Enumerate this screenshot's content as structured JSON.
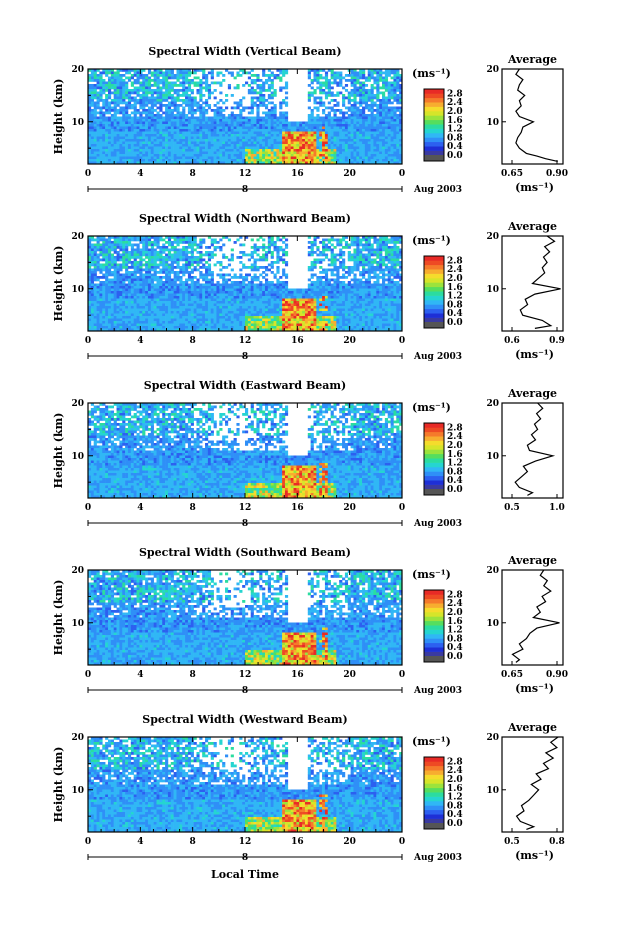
{
  "figure": {
    "x_axis_label": "Local Time"
  },
  "colorbar": {
    "unit_label": "(ms⁻¹)",
    "ticks": [
      "0.0",
      "0.4",
      "0.8",
      "1.2",
      "1.6",
      "2.0",
      "2.4",
      "2.8"
    ],
    "colors": [
      "#3a3aa0",
      "#1e2fd6",
      "#2c60f0",
      "#2f8ff7",
      "#30b7f5",
      "#25d5d0",
      "#2bdca0",
      "#55de5e",
      "#9be33c",
      "#d6e52a",
      "#f5dc2c",
      "#f7ad2f",
      "#f57a2b",
      "#ee4a24",
      "#e82a26"
    ]
  },
  "chart_data": [
    {
      "type": "heatmap",
      "title": "Spectral Width (Vertical Beam)",
      "ylabel": "Height (km)",
      "x_ticks": [
        "0",
        "4",
        "8",
        "12",
        "16",
        "20",
        "0"
      ],
      "y_ticks": [
        "20",
        "10"
      ],
      "xlim": [
        0,
        24
      ],
      "ylim": [
        2,
        20
      ],
      "date_marker": "8",
      "date_label": "Aug 2003",
      "profile": {
        "title": "Average",
        "xlabel": "(ms⁻¹)",
        "x_ticks": [
          "0.65",
          "0.90"
        ],
        "y_ticks": [
          "20",
          "10"
        ],
        "xlim": [
          0.6,
          0.95
        ],
        "heights": [
          2.5,
          3.0,
          3.5,
          4.0,
          5.0,
          6.0,
          7.0,
          8.0,
          9.0,
          10.0,
          11.0,
          12.0,
          13.0,
          14.0,
          15.0,
          16.0,
          17.0,
          18.0,
          19.0,
          20.0
        ],
        "values": [
          0.92,
          0.85,
          0.8,
          0.74,
          0.7,
          0.68,
          0.69,
          0.71,
          0.72,
          0.78,
          0.7,
          0.68,
          0.71,
          0.7,
          0.73,
          0.69,
          0.7,
          0.72,
          0.68,
          0.7
        ]
      }
    },
    {
      "type": "heatmap",
      "title": "Spectral Width (Northward Beam)",
      "ylabel": "Height (km)",
      "x_ticks": [
        "0",
        "4",
        "8",
        "12",
        "16",
        "20",
        "0"
      ],
      "y_ticks": [
        "20",
        "10"
      ],
      "xlim": [
        0,
        24
      ],
      "ylim": [
        2,
        20
      ],
      "date_marker": "8",
      "date_label": "Aug 2003",
      "profile": {
        "title": "Average",
        "xlabel": "(ms⁻¹)",
        "x_ticks": [
          "0.6",
          "0.9"
        ],
        "y_ticks": [
          "20",
          "10"
        ],
        "xlim": [
          0.45,
          0.95
        ],
        "heights": [
          2.5,
          3.0,
          4.0,
          5.0,
          6.0,
          7.0,
          8.0,
          9.0,
          10.0,
          11.0,
          12.0,
          13.0,
          14.0,
          15.0,
          16.0,
          17.0,
          18.0,
          19.0,
          20.0
        ],
        "values": [
          0.72,
          0.85,
          0.78,
          0.62,
          0.6,
          0.66,
          0.64,
          0.72,
          0.93,
          0.7,
          0.75,
          0.8,
          0.78,
          0.82,
          0.79,
          0.84,
          0.8,
          0.88,
          0.82
        ]
      }
    },
    {
      "type": "heatmap",
      "title": "Spectral Width (Eastward Beam)",
      "ylabel": "Height (km)",
      "x_ticks": [
        "0",
        "4",
        "8",
        "12",
        "16",
        "20",
        "0"
      ],
      "y_ticks": [
        "20",
        "10"
      ],
      "xlim": [
        0,
        24
      ],
      "ylim": [
        2,
        20
      ],
      "date_marker": "8",
      "date_label": "Aug 2003",
      "profile": {
        "title": "Average",
        "xlabel": "",
        "x_ticks": [
          "0.5",
          "1.0"
        ],
        "y_ticks": [
          "20",
          "10"
        ],
        "xlim": [
          0.45,
          1.05
        ],
        "heights": [
          2.5,
          3.0,
          4.0,
          5.0,
          6.0,
          7.0,
          8.0,
          9.0,
          10.0,
          11.0,
          12.0,
          13.0,
          14.0,
          15.0,
          16.0,
          17.0,
          18.0,
          19.0,
          20.0
        ],
        "values": [
          0.7,
          0.75,
          0.62,
          0.58,
          0.64,
          0.7,
          0.66,
          0.78,
          0.95,
          0.72,
          0.7,
          0.78,
          0.74,
          0.8,
          0.77,
          0.83,
          0.79,
          0.85,
          0.8
        ]
      }
    },
    {
      "type": "heatmap",
      "title": "Spectral Width (Southward Beam)",
      "ylabel": "Height (km)",
      "x_ticks": [
        "0",
        "4",
        "8",
        "12",
        "16",
        "20",
        "0"
      ],
      "y_ticks": [
        "20",
        "10"
      ],
      "xlim": [
        0,
        24
      ],
      "ylim": [
        2,
        20
      ],
      "date_marker": "8",
      "date_label": "Aug 2003",
      "profile": {
        "title": "Average",
        "xlabel": "(ms⁻¹)",
        "x_ticks": [
          "0.65",
          "0.90"
        ],
        "y_ticks": [
          "20",
          "10"
        ],
        "xlim": [
          0.6,
          0.95
        ],
        "heights": [
          2.5,
          3.0,
          4.0,
          5.0,
          6.0,
          7.0,
          8.0,
          9.0,
          10.0,
          11.0,
          12.0,
          13.0,
          14.0,
          15.0,
          16.0,
          17.0,
          18.0,
          19.0,
          20.0
        ],
        "values": [
          0.68,
          0.7,
          0.66,
          0.72,
          0.7,
          0.74,
          0.76,
          0.8,
          0.93,
          0.78,
          0.82,
          0.8,
          0.85,
          0.83,
          0.88,
          0.84,
          0.86,
          0.82,
          0.84
        ]
      }
    },
    {
      "type": "heatmap",
      "title": "Spectral Width (Westward Beam)",
      "ylabel": "Height (km)",
      "x_ticks": [
        "0",
        "4",
        "8",
        "12",
        "16",
        "20",
        "0"
      ],
      "y_ticks": [
        "20",
        "10"
      ],
      "xlim": [
        0,
        24
      ],
      "ylim": [
        2,
        20
      ],
      "date_marker": "8",
      "date_label": "Aug 2003",
      "profile": {
        "title": "Average",
        "xlabel": "(ms⁻¹)",
        "x_ticks": [
          "0.5",
          "0.8"
        ],
        "y_ticks": [
          "20",
          "10"
        ],
        "xlim": [
          0.4,
          0.9
        ],
        "heights": [
          2.5,
          3.0,
          4.0,
          5.0,
          6.0,
          7.0,
          8.0,
          9.0,
          10.0,
          11.0,
          12.0,
          13.0,
          14.0,
          15.0,
          16.0,
          17.0,
          18.0,
          19.0,
          20.0
        ],
        "values": [
          0.6,
          0.66,
          0.55,
          0.52,
          0.58,
          0.56,
          0.62,
          0.66,
          0.7,
          0.64,
          0.72,
          0.68,
          0.78,
          0.74,
          0.82,
          0.76,
          0.85,
          0.8,
          0.86
        ]
      }
    }
  ]
}
